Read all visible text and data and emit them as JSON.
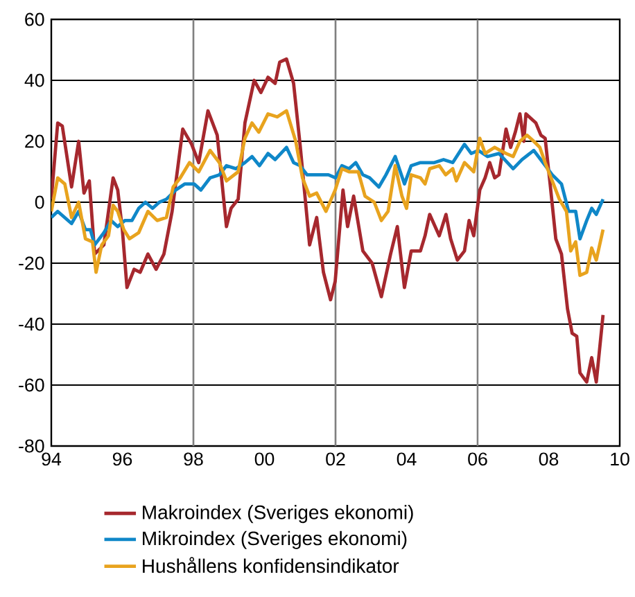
{
  "chart_data": {
    "type": "line",
    "xlim": [
      1994,
      2010
    ],
    "ylim": [
      -80,
      60
    ],
    "xticks": [
      {
        "value": 1994,
        "label": "94"
      },
      {
        "value": 1996,
        "label": "96"
      },
      {
        "value": 1998,
        "label": "98"
      },
      {
        "value": 2000,
        "label": "00"
      },
      {
        "value": 2002,
        "label": "02"
      },
      {
        "value": 2004,
        "label": "04"
      },
      {
        "value": 2006,
        "label": "06"
      },
      {
        "value": 2008,
        "label": "08"
      },
      {
        "value": 2010,
        "label": "10"
      }
    ],
    "yticks": [
      -80,
      -60,
      -40,
      -20,
      0,
      20,
      40,
      60
    ],
    "grid": "y",
    "legend": "bottom",
    "line_style": "solid",
    "ref_lines": [
      {
        "axis": "x",
        "value": 1998,
        "color": "#808080"
      },
      {
        "axis": "x",
        "value": 2002,
        "color": "#808080"
      },
      {
        "axis": "x",
        "value": 2006,
        "color": "#808080"
      }
    ],
    "series": [
      {
        "name": "Makroindex (Sveriges ekonomi)",
        "color": "#a6282e",
        "x": [
          1994.0,
          1994.18,
          1994.31,
          1994.57,
          1994.77,
          1994.92,
          1995.07,
          1995.22,
          1995.48,
          1995.74,
          1995.87,
          1996.0,
          1996.13,
          1996.33,
          1996.5,
          1996.72,
          1996.95,
          1997.17,
          1997.4,
          1997.7,
          1997.95,
          1998.15,
          1998.41,
          1998.67,
          1998.93,
          1999.06,
          1999.26,
          1999.45,
          1999.71,
          1999.9,
          2000.1,
          2000.3,
          2000.43,
          2000.62,
          2000.82,
          2001.01,
          2001.27,
          2001.47,
          2001.66,
          2001.86,
          2001.99,
          2002.21,
          2002.34,
          2002.51,
          2002.77,
          2003.03,
          2003.29,
          2003.55,
          2003.74,
          2003.94,
          2004.13,
          2004.39,
          2004.52,
          2004.65,
          2004.92,
          2005.11,
          2005.24,
          2005.43,
          2005.63,
          2005.76,
          2005.89,
          2006.06,
          2006.21,
          2006.34,
          2006.48,
          2006.6,
          2006.8,
          2006.93,
          2007.06,
          2007.19,
          2007.3,
          2007.36,
          2007.64,
          2007.78,
          2007.9,
          2008.04,
          2008.2,
          2008.36,
          2008.53,
          2008.66,
          2008.79,
          2008.88,
          2009.07,
          2009.21,
          2009.34,
          2009.53
        ],
        "values": [
          1,
          26,
          25,
          5,
          20,
          3,
          7,
          -17,
          -14,
          8,
          4,
          -9,
          -28,
          -22,
          -23,
          -17,
          -22,
          -17,
          -3,
          24,
          19,
          13,
          30,
          22,
          -8,
          -2,
          1,
          26,
          40,
          36,
          41,
          39,
          46,
          47,
          39,
          18,
          -14,
          -5,
          -23,
          -32,
          -26,
          4,
          -8,
          2,
          -16,
          -20,
          -31,
          -17,
          -8,
          -28,
          -16,
          -16,
          -11,
          -4,
          -11,
          -4,
          -12,
          -19,
          -16,
          -6,
          -11,
          4,
          8,
          13,
          8,
          9,
          24,
          18,
          23,
          29,
          20,
          29,
          26,
          22,
          21,
          6,
          -12,
          -17,
          -35,
          -43,
          -44,
          -56,
          -59,
          -51,
          -59,
          -37
        ]
      },
      {
        "name": "Mikroindex (Sveriges ekonomi)",
        "color": "#0f87c8",
        "x": [
          1994.0,
          1994.18,
          1994.57,
          1994.77,
          1994.96,
          1995.1,
          1995.22,
          1995.48,
          1995.68,
          1995.87,
          1996.07,
          1996.27,
          1996.46,
          1996.65,
          1996.85,
          1997.04,
          1997.24,
          1997.5,
          1997.76,
          1998.02,
          1998.21,
          1998.47,
          1998.73,
          1998.93,
          1999.2,
          1999.45,
          1999.65,
          1999.86,
          2000.1,
          2000.3,
          2000.62,
          2000.82,
          2001.0,
          2001.2,
          2001.4,
          2001.6,
          2001.8,
          2002.0,
          2002.18,
          2002.38,
          2002.57,
          2002.77,
          2002.96,
          2003.22,
          2003.42,
          2003.68,
          2003.94,
          2004.13,
          2004.39,
          2004.78,
          2005.04,
          2005.3,
          2005.63,
          2005.82,
          2006.02,
          2006.28,
          2006.6,
          2007.0,
          2007.25,
          2007.58,
          2007.84,
          2008.1,
          2008.36,
          2008.56,
          2008.76,
          2008.88,
          2009.07,
          2009.21,
          2009.34,
          2009.53
        ],
        "values": [
          -5,
          -3,
          -7,
          -3,
          -9,
          -9,
          -14,
          -10,
          -6,
          -8,
          -6,
          -6,
          -2,
          0,
          -2,
          0,
          1,
          4,
          6,
          6,
          4,
          8,
          9,
          12,
          11,
          13,
          15,
          12,
          16,
          14,
          18,
          13,
          12,
          9,
          9,
          9,
          9,
          8,
          12,
          11,
          13,
          9,
          8,
          5,
          9,
          15,
          6,
          12,
          13,
          13,
          14,
          13,
          19,
          16,
          17,
          15,
          16,
          11,
          14,
          17,
          13,
          9,
          6,
          -3,
          -3,
          -12,
          -6,
          -2,
          -4,
          1
        ]
      },
      {
        "name": "Hushållens konfidensindikator",
        "color": "#e8a31e",
        "x": [
          1994.0,
          1994.18,
          1994.38,
          1994.57,
          1994.77,
          1994.96,
          1995.16,
          1995.26,
          1995.42,
          1995.61,
          1995.74,
          1995.87,
          1996.04,
          1996.2,
          1996.46,
          1996.72,
          1996.98,
          1997.24,
          1997.43,
          1997.63,
          1997.89,
          1998.15,
          1998.47,
          1998.73,
          1998.93,
          1999.26,
          1999.45,
          1999.65,
          1999.84,
          2000.1,
          2000.36,
          2000.62,
          2000.88,
          2001.07,
          2001.27,
          2001.47,
          2001.73,
          2001.99,
          2002.18,
          2002.38,
          2002.64,
          2002.83,
          2003.09,
          2003.29,
          2003.48,
          2003.68,
          2003.87,
          2004.0,
          2004.13,
          2004.39,
          2004.52,
          2004.65,
          2004.92,
          2005.1,
          2005.3,
          2005.4,
          2005.63,
          2005.89,
          2006.06,
          2006.21,
          2006.48,
          2006.8,
          2007.0,
          2007.19,
          2007.39,
          2007.58,
          2007.75,
          2007.9,
          2008.1,
          2008.3,
          2008.5,
          2008.62,
          2008.76,
          2008.88,
          2009.07,
          2009.21,
          2009.34,
          2009.53
        ],
        "values": [
          -3,
          8,
          6,
          -5,
          0,
          -12,
          -13,
          -23,
          -14,
          -11,
          -1,
          -3,
          -9,
          -12,
          -10,
          -3,
          -6,
          -5,
          5,
          8,
          13,
          10,
          17,
          13,
          7,
          10,
          21,
          26,
          23,
          29,
          28,
          30,
          20,
          8,
          2,
          3,
          -3,
          4,
          11,
          10,
          10,
          2,
          0,
          -6,
          -3,
          12,
          2,
          -2,
          9,
          8,
          6,
          11,
          12,
          9,
          11,
          7,
          13,
          10,
          21,
          16,
          18,
          16,
          15,
          20,
          22,
          20,
          18,
          13,
          7,
          1,
          -3,
          -16,
          -13,
          -24,
          -23,
          -15,
          -19,
          -9
        ]
      }
    ]
  }
}
